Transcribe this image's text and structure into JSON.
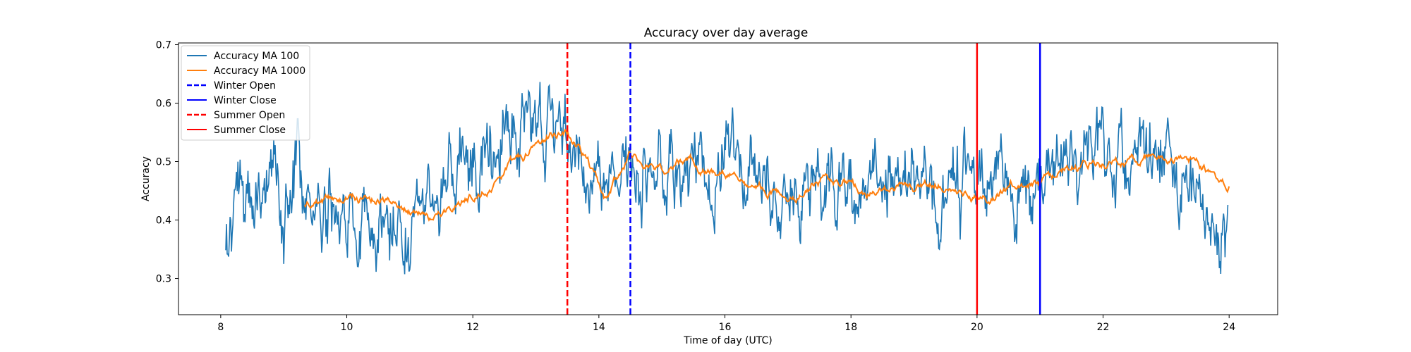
{
  "chart_data": {
    "type": "line",
    "title": "Accuracy over day average",
    "xlabel": "Time of day (UTC)",
    "ylabel": "Accuracy",
    "xlim": [
      7.33,
      24.77
    ],
    "ylim": [
      0.238,
      0.703
    ],
    "xticks": [
      8,
      10,
      12,
      14,
      16,
      18,
      20,
      22,
      24
    ],
    "yticks": [
      0.3,
      0.4,
      0.5,
      0.6,
      0.7
    ],
    "grid": false,
    "legend_position": "upper-left",
    "series": [
      {
        "name": "Accuracy MA 100",
        "color": "#1f77b4",
        "style": "solid",
        "seed": 1,
        "x_range": [
          8.08,
          23.98
        ],
        "trend": [
          [
            8.08,
            0.335
          ],
          [
            8.3,
            0.41
          ],
          [
            8.6,
            0.455
          ],
          [
            9.0,
            0.45
          ],
          [
            9.2,
            0.5
          ],
          [
            9.5,
            0.41
          ],
          [
            10.0,
            0.43
          ],
          [
            10.5,
            0.38
          ],
          [
            10.9,
            0.41
          ],
          [
            11.3,
            0.43
          ],
          [
            11.8,
            0.46
          ],
          [
            12.3,
            0.5
          ],
          [
            12.8,
            0.55
          ],
          [
            13.3,
            0.57
          ],
          [
            13.5,
            0.53
          ],
          [
            13.9,
            0.45
          ],
          [
            14.4,
            0.47
          ],
          [
            15.0,
            0.5
          ],
          [
            15.6,
            0.48
          ],
          [
            16.0,
            0.5
          ],
          [
            16.6,
            0.44
          ],
          [
            17.2,
            0.46
          ],
          [
            17.8,
            0.43
          ],
          [
            18.5,
            0.45
          ],
          [
            19.2,
            0.47
          ],
          [
            20.0,
            0.44
          ],
          [
            20.3,
            0.46
          ],
          [
            20.6,
            0.42
          ],
          [
            21.0,
            0.49
          ],
          [
            21.5,
            0.5
          ],
          [
            22.0,
            0.5
          ],
          [
            22.5,
            0.5
          ],
          [
            23.0,
            0.53
          ],
          [
            23.3,
            0.47
          ],
          [
            23.6,
            0.41
          ],
          [
            23.98,
            0.39
          ]
        ],
        "amplitude": 0.052
      },
      {
        "name": "Accuracy MA 1000",
        "color": "#ff7f0e",
        "style": "solid",
        "seed": 2,
        "x_range": [
          9.33,
          24.0
        ],
        "trend": [
          [
            9.33,
            0.425
          ],
          [
            9.8,
            0.43
          ],
          [
            10.3,
            0.44
          ],
          [
            10.8,
            0.43
          ],
          [
            11.3,
            0.405
          ],
          [
            11.8,
            0.43
          ],
          [
            12.3,
            0.465
          ],
          [
            12.8,
            0.51
          ],
          [
            13.2,
            0.545
          ],
          [
            13.5,
            0.555
          ],
          [
            13.8,
            0.5
          ],
          [
            14.1,
            0.44
          ],
          [
            14.5,
            0.51
          ],
          [
            15.0,
            0.49
          ],
          [
            15.5,
            0.5
          ],
          [
            16.0,
            0.48
          ],
          [
            16.5,
            0.46
          ],
          [
            17.0,
            0.44
          ],
          [
            17.6,
            0.47
          ],
          [
            18.2,
            0.45
          ],
          [
            18.8,
            0.45
          ],
          [
            19.3,
            0.47
          ],
          [
            19.8,
            0.45
          ],
          [
            20.2,
            0.44
          ],
          [
            20.6,
            0.46
          ],
          [
            21.0,
            0.465
          ],
          [
            21.5,
            0.49
          ],
          [
            22.0,
            0.495
          ],
          [
            22.5,
            0.5
          ],
          [
            23.0,
            0.515
          ],
          [
            23.4,
            0.505
          ],
          [
            23.7,
            0.485
          ],
          [
            24.0,
            0.465
          ]
        ],
        "amplitude": 0.01
      }
    ],
    "vlines": [
      {
        "name": "Winter Open",
        "x": 14.5,
        "color": "#0000ff",
        "style": "dashed"
      },
      {
        "name": "Winter Close",
        "x": 21.0,
        "color": "#0000ff",
        "style": "solid"
      },
      {
        "name": "Summer Open",
        "x": 13.5,
        "color": "#ff0000",
        "style": "dashed"
      },
      {
        "name": "Summer Close",
        "x": 20.0,
        "color": "#ff0000",
        "style": "solid"
      }
    ],
    "legend": [
      {
        "label": "Accuracy MA 100",
        "color": "#1f77b4",
        "style": "solid"
      },
      {
        "label": "Accuracy MA 1000",
        "color": "#ff7f0e",
        "style": "solid"
      },
      {
        "label": "Winter Open",
        "color": "#0000ff",
        "style": "dashed"
      },
      {
        "label": "Winter Close",
        "color": "#0000ff",
        "style": "solid"
      },
      {
        "label": "Summer Open",
        "color": "#ff0000",
        "style": "dashed"
      },
      {
        "label": "Summer Close",
        "color": "#ff0000",
        "style": "solid"
      }
    ]
  }
}
